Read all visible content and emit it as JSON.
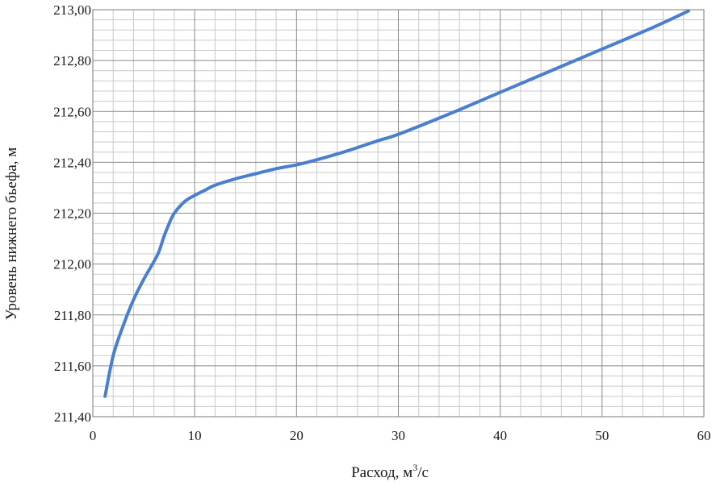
{
  "chart_data": {
    "type": "line",
    "xlabel": "Расход, м",
    "xlabel_sup": "3",
    "xlabel_tail": "/с",
    "ylabel": "Уровень нижнего бьефа, м",
    "xlim": [
      0,
      60
    ],
    "ylim": [
      211.4,
      213.0
    ],
    "x_ticks": [
      0,
      10,
      20,
      30,
      40,
      50,
      60
    ],
    "x_tick_labels": [
      "0",
      "10",
      "20",
      "30",
      "40",
      "50",
      "60"
    ],
    "y_ticks": [
      211.4,
      211.6,
      211.8,
      212.0,
      212.2,
      212.4,
      212.6,
      212.8,
      213.0
    ],
    "y_tick_labels": [
      "211,40",
      "211,60",
      "211,80",
      "212,00",
      "212,20",
      "212,40",
      "212,60",
      "212,80",
      "213,00"
    ],
    "grid": true,
    "minor_grid": true,
    "legend": "none",
    "line_color": "#4a7fcf",
    "series": [
      {
        "x": [
          1.2,
          2.0,
          3.0,
          4.0,
          5.0,
          6.0,
          6.5,
          7.0,
          7.5,
          8.0,
          9.0,
          10.0,
          11.0,
          12.0,
          14.0,
          16.0,
          18.0,
          20.0,
          22.0,
          25.0,
          28.0,
          30.0,
          35.0,
          40.0,
          45.0,
          50.0,
          55.0,
          58.5
        ],
        "values": [
          211.48,
          211.64,
          211.76,
          211.86,
          211.94,
          212.01,
          212.05,
          212.11,
          212.16,
          212.2,
          212.245,
          212.27,
          212.29,
          212.31,
          212.335,
          212.355,
          212.375,
          212.39,
          212.41,
          212.445,
          212.485,
          212.51,
          212.59,
          212.675,
          212.76,
          212.845,
          212.93,
          212.995
        ]
      }
    ]
  }
}
